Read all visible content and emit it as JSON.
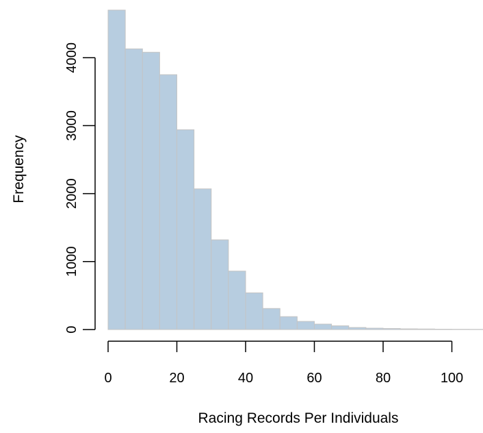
{
  "chart_data": {
    "type": "bar",
    "title": "",
    "xlabel": "Racing Records Per Individuals",
    "ylabel": "Frequency",
    "bin_width": 5,
    "bin_starts": [
      0,
      5,
      10,
      15,
      20,
      25,
      30,
      35,
      40,
      45,
      50,
      55,
      60,
      65,
      70,
      75,
      80,
      85,
      90,
      95,
      100,
      105
    ],
    "values": [
      4700,
      4130,
      4080,
      3750,
      2940,
      2070,
      1320,
      860,
      540,
      310,
      190,
      120,
      80,
      55,
      30,
      20,
      15,
      10,
      8,
      5,
      4,
      3
    ],
    "x_ticks": [
      0,
      20,
      40,
      60,
      80,
      100
    ],
    "y_ticks": [
      0,
      1000,
      2000,
      3000,
      4000
    ],
    "xlim": [
      0,
      110
    ],
    "ylim": [
      0,
      4700
    ],
    "grid": false,
    "bar_color": "#b7cde0",
    "bar_edge_color": "#c4c4c4"
  }
}
